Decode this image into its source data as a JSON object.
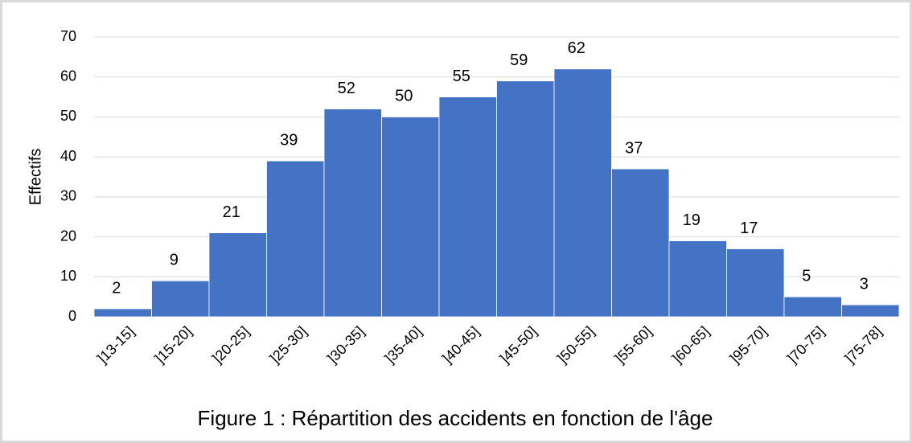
{
  "chart_data": {
    "type": "bar",
    "title": "Figure 1 : Répartition des accidents en fonction de l'âge",
    "ylabel": "Effectifs",
    "categories": [
      "]13-15]",
      "]15-20]",
      "]20-25]",
      "]25-30]",
      "]30-35]",
      "]35-40]",
      "]40-45]",
      "]45-50]",
      "]50-55]",
      "]55-60]",
      "]60-65]",
      "]95-70]",
      "]70-75]",
      "]75-78]"
    ],
    "values": [
      2,
      9,
      21,
      39,
      52,
      50,
      55,
      59,
      62,
      37,
      19,
      17,
      5,
      3
    ],
    "color": "#4472c4",
    "ylim": [
      0,
      70
    ],
    "yticks": [
      0,
      10,
      20,
      30,
      40,
      50,
      60,
      70
    ],
    "grid": true
  }
}
